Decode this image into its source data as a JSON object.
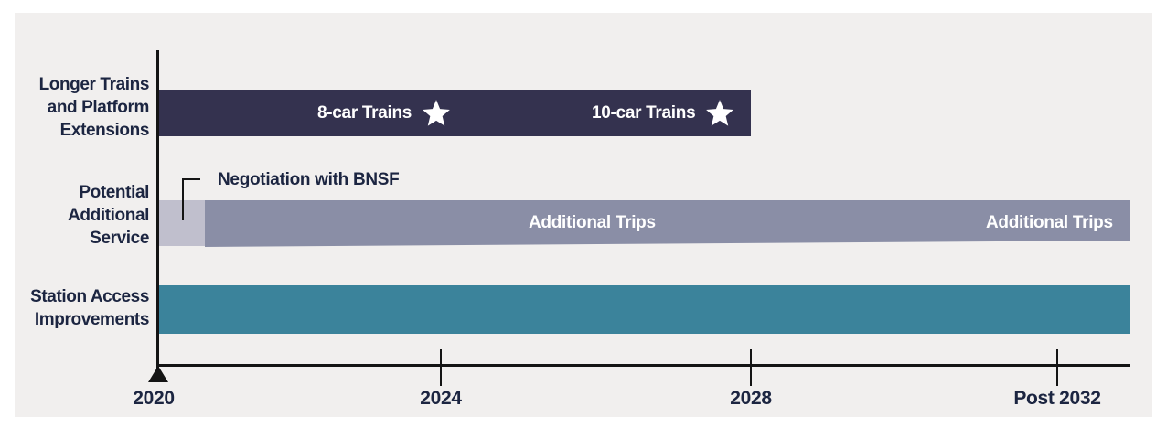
{
  "rows": [
    {
      "label_lines": [
        "Longer Trains",
        "and Platform",
        "Extensions"
      ]
    },
    {
      "label_lines": [
        "Potential",
        "Additional",
        "Service"
      ]
    },
    {
      "label_lines": [
        "Station Access",
        "Improvements"
      ]
    }
  ],
  "bars": {
    "longer_trains": {
      "markers": [
        "8-car Trains",
        "10-car Trains"
      ],
      "color": "#34324f"
    },
    "additional_service": {
      "negotiation_label": "Negotiation with BNSF",
      "negotiation_color": "#c0bfcd",
      "trips_labels": [
        "Additional Trips",
        "Additional Trips"
      ],
      "color": "#8a8ea6"
    },
    "station_access": {
      "color": "#3b839b"
    }
  },
  "axis": {
    "ticks": [
      "2020",
      "2024",
      "2028",
      "Post 2032"
    ]
  },
  "icons": {
    "milestone": "star-icon",
    "origin": "triangle-arrow-icon"
  }
}
